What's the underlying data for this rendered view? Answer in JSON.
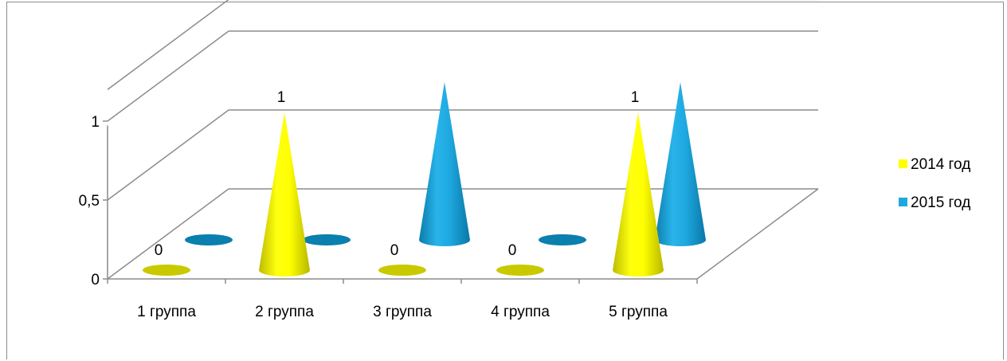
{
  "chart_data": {
    "type": "bar",
    "style": "3d-cone",
    "categories": [
      "1 группа",
      "2 группа",
      "3 группа",
      "4 группа",
      "5 группа"
    ],
    "series": [
      {
        "name": "2014 год",
        "values": [
          0,
          1,
          0,
          0,
          1
        ],
        "color": "#ffff00",
        "dark": "#c9c900"
      },
      {
        "name": "2015 год",
        "values": [
          0,
          0,
          1,
          0,
          1
        ],
        "color": "#1ea8e0",
        "dark": "#0b7fae"
      }
    ],
    "data_labels": {
      "series": "2014 год",
      "values": [
        "0",
        "1",
        "0",
        "0",
        "1"
      ]
    },
    "y_ticks": [
      "0",
      "0,5",
      "1"
    ],
    "ylim": [
      0,
      1.2
    ],
    "grid": true,
    "legend_position": "right",
    "title": "",
    "xlabel": "",
    "ylabel": ""
  }
}
